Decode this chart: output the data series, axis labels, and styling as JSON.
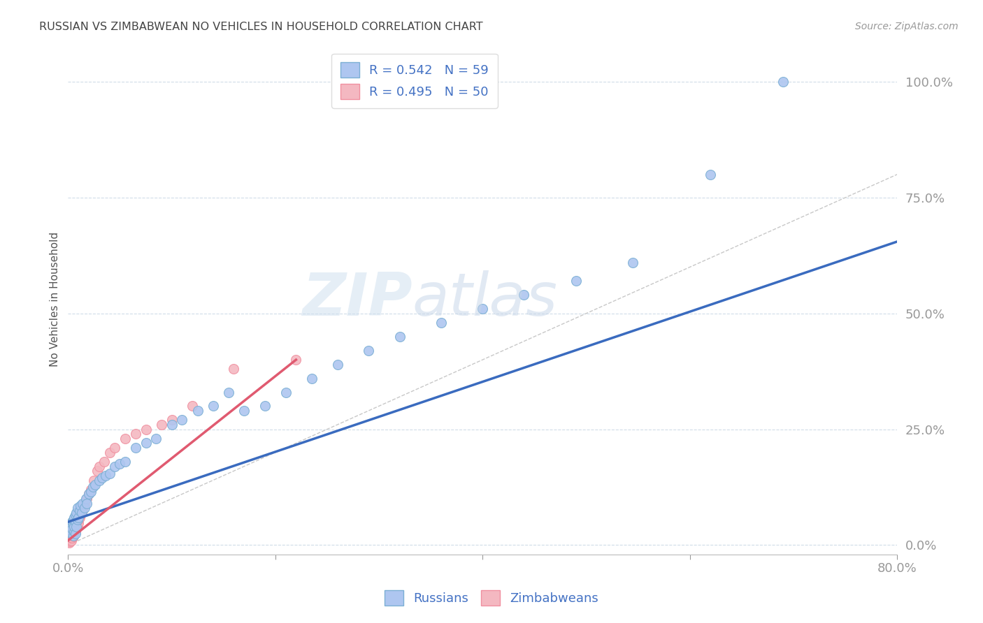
{
  "title": "RUSSIAN VS ZIMBABWEAN NO VEHICLES IN HOUSEHOLD CORRELATION CHART",
  "source": "Source: ZipAtlas.com",
  "bottom_legend": [
    "Russians",
    "Zimbabweans"
  ],
  "blue_color": "#7bafd4",
  "pink_color": "#f090a0",
  "blue_fill": "#aec6f0",
  "pink_fill": "#f4b8c1",
  "trend_blue": "#3a6bbf",
  "trend_pink": "#e05a70",
  "diagonal_color": "#c8c8c8",
  "watermark": "ZIPatlas",
  "background_color": "#ffffff",
  "grid_color": "#d0dce8",
  "axis_label_color": "#4472c4",
  "ylabel_label": "No Vehicles in Household",
  "xlim": [
    0.0,
    0.8
  ],
  "ylim": [
    -0.02,
    1.08
  ],
  "russians_x": [
    0.002,
    0.003,
    0.003,
    0.004,
    0.004,
    0.005,
    0.005,
    0.005,
    0.006,
    0.006,
    0.006,
    0.007,
    0.007,
    0.007,
    0.008,
    0.008,
    0.009,
    0.009,
    0.01,
    0.011,
    0.012,
    0.013,
    0.014,
    0.016,
    0.017,
    0.018,
    0.02,
    0.022,
    0.024,
    0.026,
    0.03,
    0.033,
    0.036,
    0.04,
    0.045,
    0.05,
    0.055,
    0.065,
    0.075,
    0.085,
    0.1,
    0.11,
    0.125,
    0.14,
    0.155,
    0.17,
    0.19,
    0.21,
    0.235,
    0.26,
    0.29,
    0.32,
    0.36,
    0.4,
    0.44,
    0.49,
    0.545,
    0.62,
    0.69
  ],
  "russians_y": [
    0.03,
    0.025,
    0.04,
    0.035,
    0.05,
    0.02,
    0.045,
    0.055,
    0.03,
    0.04,
    0.06,
    0.025,
    0.05,
    0.065,
    0.04,
    0.07,
    0.055,
    0.08,
    0.06,
    0.075,
    0.085,
    0.07,
    0.09,
    0.08,
    0.1,
    0.09,
    0.11,
    0.115,
    0.125,
    0.13,
    0.14,
    0.145,
    0.15,
    0.155,
    0.17,
    0.175,
    0.18,
    0.21,
    0.22,
    0.23,
    0.26,
    0.27,
    0.29,
    0.3,
    0.33,
    0.29,
    0.3,
    0.33,
    0.36,
    0.39,
    0.42,
    0.45,
    0.48,
    0.51,
    0.54,
    0.57,
    0.61,
    0.8,
    1.0
  ],
  "zimbabweans_x": [
    0.001,
    0.001,
    0.002,
    0.002,
    0.002,
    0.002,
    0.003,
    0.003,
    0.003,
    0.003,
    0.004,
    0.004,
    0.004,
    0.004,
    0.005,
    0.005,
    0.005,
    0.005,
    0.006,
    0.006,
    0.006,
    0.007,
    0.007,
    0.008,
    0.008,
    0.009,
    0.01,
    0.01,
    0.011,
    0.012,
    0.013,
    0.014,
    0.016,
    0.018,
    0.02,
    0.022,
    0.025,
    0.028,
    0.03,
    0.035,
    0.04,
    0.045,
    0.055,
    0.065,
    0.075,
    0.09,
    0.1,
    0.12,
    0.16,
    0.22
  ],
  "zimbabweans_y": [
    0.005,
    0.01,
    0.008,
    0.012,
    0.015,
    0.02,
    0.01,
    0.015,
    0.02,
    0.025,
    0.015,
    0.02,
    0.025,
    0.03,
    0.018,
    0.025,
    0.03,
    0.035,
    0.025,
    0.03,
    0.04,
    0.03,
    0.038,
    0.035,
    0.045,
    0.04,
    0.048,
    0.055,
    0.06,
    0.065,
    0.07,
    0.075,
    0.09,
    0.1,
    0.11,
    0.12,
    0.14,
    0.16,
    0.17,
    0.18,
    0.2,
    0.21,
    0.23,
    0.24,
    0.25,
    0.26,
    0.27,
    0.3,
    0.38,
    0.4
  ],
  "blue_trend_x0": 0.0,
  "blue_trend_y0": 0.05,
  "blue_trend_x1": 0.8,
  "blue_trend_y1": 0.655,
  "pink_trend_x0": 0.0,
  "pink_trend_y0": 0.01,
  "pink_trend_x1": 0.22,
  "pink_trend_y1": 0.4
}
